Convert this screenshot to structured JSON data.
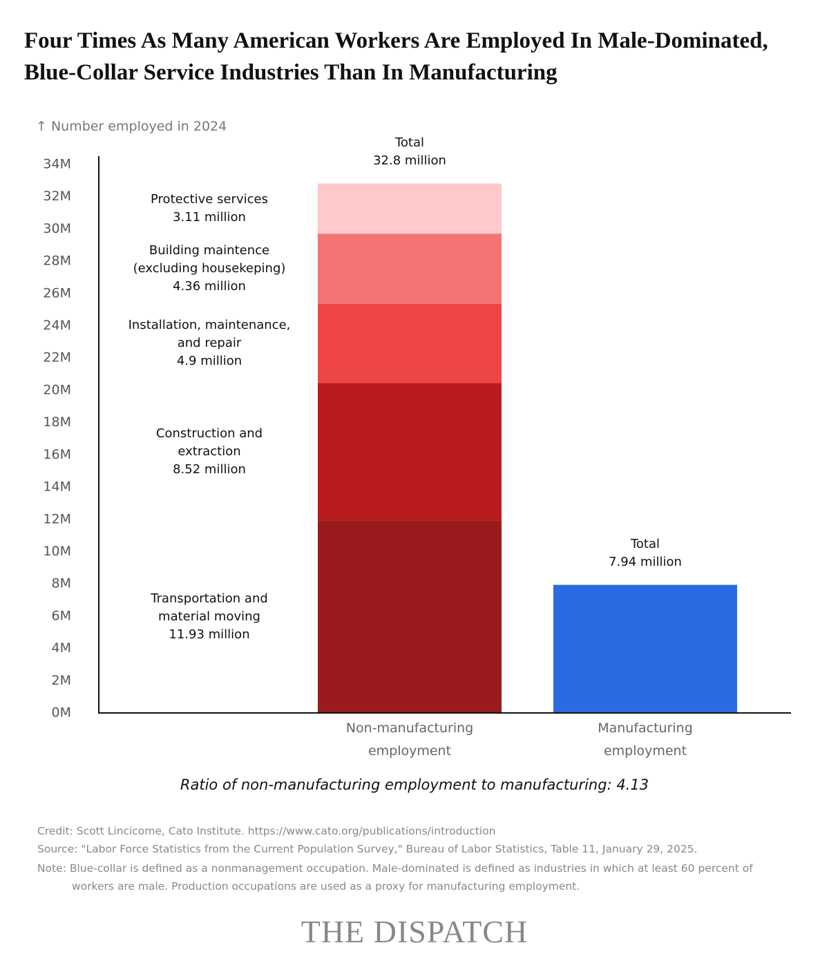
{
  "chart_data": {
    "type": "stacked-bar",
    "title": "Four Times As Many American Workers Are Employed In Male-Dominated, Blue-Collar Service Industries Than In Manufacturing",
    "y_label": "↑ Number employed in 2024",
    "categories": [
      "Non-manufacturing employment",
      "Manufacturing employment"
    ],
    "series": [
      {
        "name": "Transportation and material moving",
        "color": "#991b1e",
        "values": [
          11.93,
          null
        ],
        "value_labels": [
          "11.93 million",
          null
        ]
      },
      {
        "name": "Construction and extraction",
        "color": "#b81c1f",
        "values": [
          8.52,
          null
        ],
        "value_labels": [
          "8.52 million",
          null
        ]
      },
      {
        "name": "Installation, maintenance, and repair",
        "color": "#ee4646",
        "values": [
          4.9,
          null
        ],
        "value_labels": [
          "4.9 million",
          null
        ]
      },
      {
        "name": "Building maintence (excluding housekeping)",
        "color": "#f47474",
        "values": [
          4.36,
          null
        ],
        "value_labels": [
          "4.36 million",
          null
        ]
      },
      {
        "name": "Protective services",
        "color": "#fdc9ca",
        "values": [
          3.11,
          null
        ],
        "value_labels": [
          "3.11 million",
          null
        ]
      },
      {
        "color": "#2a6be2",
        "values": [
          null,
          7.94
        ]
      }
    ],
    "totals": {
      "label": "Total",
      "values": [
        32.8,
        7.94
      ],
      "value_labels": [
        "32.8 million",
        "7.94 million"
      ]
    },
    "ylim": [
      0,
      34
    ],
    "yticks": [
      {
        "value": 0,
        "label": "0M"
      },
      {
        "value": 2,
        "label": "2M"
      },
      {
        "value": 4,
        "label": "4M"
      },
      {
        "value": 6,
        "label": "6M"
      },
      {
        "value": 8,
        "label": "8M"
      },
      {
        "value": 10,
        "label": "10M"
      },
      {
        "value": 12,
        "label": "12M"
      },
      {
        "value": 14,
        "label": "14M"
      },
      {
        "value": 16,
        "label": "16M"
      },
      {
        "value": 18,
        "label": "18M"
      },
      {
        "value": 20,
        "label": "20M"
      },
      {
        "value": 22,
        "label": "22M"
      },
      {
        "value": 24,
        "label": "24M"
      },
      {
        "value": 26,
        "label": "26M"
      },
      {
        "value": 28,
        "label": "28M"
      },
      {
        "value": 30,
        "label": "30M"
      },
      {
        "value": 32,
        "label": "32M"
      },
      {
        "value": 34,
        "label": "34M"
      }
    ],
    "grid": false,
    "annotation": "Ratio of non-manufacturing employment to manufacturing: 4.13",
    "credit": "Credit: Scott Lincicome, Cato Institute. https://www.cato.org/publications/introduction",
    "source": "Source: \"Labor Force Statistics from the Current Population Survey,\" Bureau of Labor Statistics, Table 11, January 29, 2025.",
    "note": "Note: Blue-collar is defined as a nonmanagement occupation. Male-dominated is defined as industries in which at least 60 percent of workers are male. Production occupations are used as a proxy for manufacturing employment.",
    "brand": "THE DISPATCH"
  }
}
